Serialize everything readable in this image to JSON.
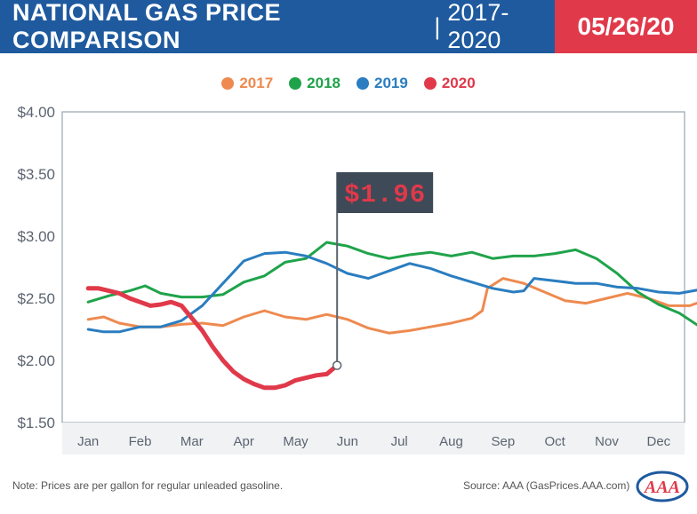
{
  "header": {
    "title": "NATIONAL GAS PRICE COMPARISON",
    "separator": "|",
    "subtitle": "2017-2020",
    "date": "05/26/20",
    "colors": {
      "blue_band": "#1f5a9e",
      "red_band": "#e0394a"
    }
  },
  "callout": {
    "value": "$1.96",
    "x_month": 4.8,
    "y": 1.96
  },
  "footer": {
    "note": "Note: Prices are per gallon for regular unleaded gasoline.",
    "source": "Source: AAA (GasPrices.AAA.com)",
    "logo_text": "AAA"
  },
  "chart_data": {
    "type": "line",
    "title": "NATIONAL GAS PRICE COMPARISON | 2017-2020",
    "xlabel": "",
    "ylabel": "",
    "categories": [
      "Jan",
      "Feb",
      "Mar",
      "Apr",
      "May",
      "Jun",
      "Jul",
      "Aug",
      "Sep",
      "Oct",
      "Nov",
      "Dec"
    ],
    "ylim": [
      1.5,
      4.0
    ],
    "yticks": [
      "$4.00",
      "$3.50",
      "$3.00",
      "$2.50",
      "$2.00",
      "$1.50"
    ],
    "ytick_values": [
      4.0,
      3.5,
      3.0,
      2.5,
      2.0,
      1.5
    ],
    "legend_position": "top-center",
    "grid": false,
    "series": [
      {
        "name": "2017",
        "color": "#ee8a4f",
        "x": [
          0,
          0.3,
          0.6,
          1.0,
          1.4,
          1.8,
          2.2,
          2.6,
          3.0,
          3.4,
          3.8,
          4.2,
          4.6,
          5.0,
          5.4,
          5.8,
          6.2,
          6.6,
          7.0,
          7.4,
          7.6,
          7.7,
          8.0,
          8.4,
          8.8,
          9.2,
          9.6,
          10.0,
          10.4,
          10.8,
          11.2,
          11.6,
          11.8
        ],
        "y": [
          2.33,
          2.35,
          2.3,
          2.27,
          2.27,
          2.29,
          2.3,
          2.28,
          2.35,
          2.4,
          2.35,
          2.33,
          2.37,
          2.33,
          2.26,
          2.22,
          2.24,
          2.27,
          2.3,
          2.34,
          2.4,
          2.58,
          2.66,
          2.62,
          2.55,
          2.48,
          2.46,
          2.5,
          2.54,
          2.5,
          2.44,
          2.44,
          2.47
        ]
      },
      {
        "name": "2018",
        "color": "#1fa34a",
        "x": [
          0,
          0.4,
          0.8,
          1.1,
          1.4,
          1.8,
          2.2,
          2.6,
          3.0,
          3.4,
          3.8,
          4.2,
          4.6,
          5.0,
          5.4,
          5.8,
          6.2,
          6.6,
          7.0,
          7.4,
          7.8,
          8.2,
          8.6,
          9.0,
          9.4,
          9.8,
          10.2,
          10.6,
          11.0,
          11.4,
          11.8
        ],
        "y": [
          2.47,
          2.52,
          2.56,
          2.6,
          2.54,
          2.51,
          2.51,
          2.53,
          2.63,
          2.68,
          2.79,
          2.82,
          2.95,
          2.92,
          2.86,
          2.82,
          2.85,
          2.87,
          2.84,
          2.87,
          2.82,
          2.84,
          2.84,
          2.86,
          2.89,
          2.82,
          2.7,
          2.55,
          2.45,
          2.38,
          2.27
        ]
      },
      {
        "name": "2019",
        "color": "#2a7dc0",
        "x": [
          0,
          0.3,
          0.6,
          1.0,
          1.4,
          1.8,
          2.2,
          2.6,
          3.0,
          3.4,
          3.8,
          4.2,
          4.6,
          5.0,
          5.4,
          5.8,
          6.2,
          6.6,
          7.0,
          7.4,
          7.8,
          8.2,
          8.4,
          8.6,
          9.0,
          9.4,
          9.8,
          10.2,
          10.6,
          11.0,
          11.4,
          11.8
        ],
        "y": [
          2.25,
          2.23,
          2.23,
          2.27,
          2.27,
          2.32,
          2.44,
          2.62,
          2.8,
          2.86,
          2.87,
          2.84,
          2.78,
          2.7,
          2.66,
          2.72,
          2.78,
          2.74,
          2.68,
          2.63,
          2.58,
          2.55,
          2.56,
          2.66,
          2.64,
          2.62,
          2.62,
          2.59,
          2.58,
          2.55,
          2.54,
          2.57
        ]
      },
      {
        "name": "2020",
        "color": "#e0394a",
        "x": [
          0,
          0.2,
          0.4,
          0.6,
          0.8,
          1.0,
          1.2,
          1.4,
          1.6,
          1.8,
          2.0,
          2.2,
          2.4,
          2.6,
          2.8,
          3.0,
          3.2,
          3.4,
          3.6,
          3.8,
          4.0,
          4.2,
          4.4,
          4.6,
          4.8
        ],
        "y": [
          2.58,
          2.58,
          2.56,
          2.54,
          2.5,
          2.47,
          2.44,
          2.45,
          2.47,
          2.44,
          2.34,
          2.24,
          2.11,
          2.0,
          1.91,
          1.85,
          1.81,
          1.78,
          1.78,
          1.8,
          1.84,
          1.86,
          1.88,
          1.89,
          1.96
        ]
      }
    ]
  }
}
